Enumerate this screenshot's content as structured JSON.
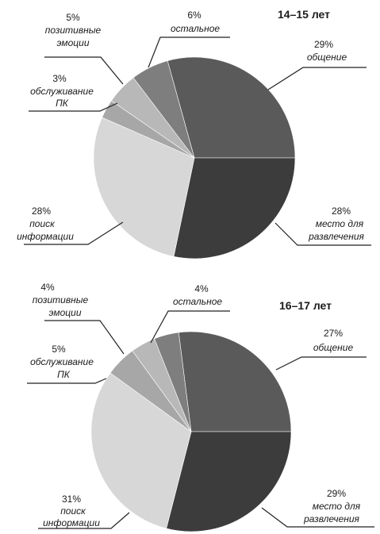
{
  "chart_data": [
    {
      "type": "pie",
      "title": "14–15 лет",
      "slices": [
        {
          "label": [
            "общение"
          ],
          "percent_label": "29%",
          "value": 29,
          "color": "#5a5a5a"
        },
        {
          "label": [
            "место для",
            "развлечения"
          ],
          "percent_label": "28%",
          "value": 28,
          "color": "#3c3c3c"
        },
        {
          "label": [
            "поиск",
            "информации"
          ],
          "percent_label": "28%",
          "value": 28,
          "color": "#d7d7d7"
        },
        {
          "label": [
            "обслуживание",
            "ПК"
          ],
          "percent_label": "3%",
          "value": 3,
          "color": "#a7a7a7"
        },
        {
          "label": [
            "позитивные",
            "эмоции"
          ],
          "percent_label": "5%",
          "value": 5,
          "color": "#b8b8b8"
        },
        {
          "label": [
            "остальное"
          ],
          "percent_label": "6%",
          "value": 6,
          "color": "#7e7e7e"
        }
      ]
    },
    {
      "type": "pie",
      "title": "16–17 лет",
      "slices": [
        {
          "label": [
            "общение"
          ],
          "percent_label": "27%",
          "value": 27,
          "color": "#5a5a5a"
        },
        {
          "label": [
            "место для",
            "развлечения"
          ],
          "percent_label": "29%",
          "value": 29,
          "color": "#3c3c3c"
        },
        {
          "label": [
            "поиск",
            "информации"
          ],
          "percent_label": "31%",
          "value": 31,
          "color": "#d7d7d7"
        },
        {
          "label": [
            "обслуживание",
            "ПК"
          ],
          "percent_label": "5%",
          "value": 5,
          "color": "#a7a7a7"
        },
        {
          "label": [
            "позитивные",
            "эмоции"
          ],
          "percent_label": "4%",
          "value": 4,
          "color": "#b8b8b8"
        },
        {
          "label": [
            "остальное"
          ],
          "percent_label": "4%",
          "value": 4,
          "color": "#7e7e7e"
        }
      ]
    }
  ]
}
